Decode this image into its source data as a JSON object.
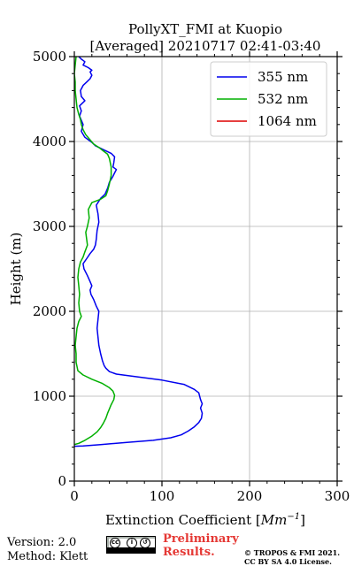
{
  "chart_data": {
    "type": "line",
    "title_line1": "PollyXT_FMI at Kuopio",
    "title_line2": "[Averaged] 20210717 02:41-03:40",
    "xlabel": "Extinction Coefficient [",
    "xlabel_unit": "Mm",
    "xlabel_exp": "−1",
    "xlabel_close": "]",
    "ylabel": "Height (m)",
    "xlim": [
      0,
      300
    ],
    "ylim": [
      0,
      5000
    ],
    "x_ticks": [
      0,
      100,
      200,
      300
    ],
    "x_tick_labels": [
      "0",
      "100",
      "200",
      "300"
    ],
    "y_ticks": [
      0,
      1000,
      2000,
      3000,
      4000,
      5000
    ],
    "y_tick_labels": [
      "0",
      "1000",
      "2000",
      "3000",
      "4000",
      "5000"
    ],
    "grid": true,
    "legend_position": "top-right",
    "series": [
      {
        "name": "355 nm",
        "color": "#0000ee",
        "points": [
          [
            0,
            410
          ],
          [
            10,
            415
          ],
          [
            30,
            430
          ],
          [
            60,
            455
          ],
          [
            90,
            480
          ],
          [
            110,
            510
          ],
          [
            122,
            545
          ],
          [
            130,
            590
          ],
          [
            137,
            640
          ],
          [
            142,
            690
          ],
          [
            145,
            740
          ],
          [
            146,
            800
          ],
          [
            144,
            860
          ],
          [
            146,
            910
          ],
          [
            144,
            960
          ],
          [
            142,
            1040
          ],
          [
            137,
            1080
          ],
          [
            125,
            1140
          ],
          [
            100,
            1190
          ],
          [
            70,
            1230
          ],
          [
            48,
            1260
          ],
          [
            40,
            1290
          ],
          [
            36,
            1330
          ],
          [
            34,
            1360
          ],
          [
            32,
            1420
          ],
          [
            30,
            1500
          ],
          [
            28,
            1600
          ],
          [
            27,
            1700
          ],
          [
            26,
            1800
          ],
          [
            27,
            1900
          ],
          [
            28,
            2000
          ],
          [
            25,
            2060
          ],
          [
            22,
            2140
          ],
          [
            19,
            2200
          ],
          [
            18,
            2250
          ],
          [
            20,
            2300
          ],
          [
            18,
            2350
          ],
          [
            15,
            2420
          ],
          [
            11,
            2500
          ],
          [
            10,
            2560
          ],
          [
            14,
            2620
          ],
          [
            18,
            2680
          ],
          [
            22,
            2730
          ],
          [
            24,
            2780
          ],
          [
            25,
            2850
          ],
          [
            26,
            2950
          ],
          [
            28,
            3050
          ],
          [
            27,
            3150
          ],
          [
            25,
            3250
          ],
          [
            30,
            3330
          ],
          [
            35,
            3380
          ],
          [
            38,
            3450
          ],
          [
            40,
            3520
          ],
          [
            44,
            3590
          ],
          [
            46,
            3630
          ],
          [
            48,
            3670
          ],
          [
            44,
            3700
          ],
          [
            45,
            3750
          ],
          [
            46,
            3820
          ],
          [
            42,
            3860
          ],
          [
            36,
            3890
          ],
          [
            30,
            3920
          ],
          [
            24,
            3950
          ],
          [
            20,
            3990
          ],
          [
            12,
            4050
          ],
          [
            8,
            4120
          ],
          [
            10,
            4200
          ],
          [
            6,
            4300
          ],
          [
            8,
            4360
          ],
          [
            6,
            4420
          ],
          [
            12,
            4480
          ],
          [
            8,
            4530
          ],
          [
            7,
            4600
          ],
          [
            10,
            4660
          ],
          [
            14,
            4700
          ],
          [
            18,
            4740
          ],
          [
            20,
            4780
          ],
          [
            18,
            4820
          ],
          [
            20,
            4840
          ],
          [
            16,
            4870
          ],
          [
            10,
            4900
          ],
          [
            12,
            4940
          ],
          [
            8,
            4970
          ],
          [
            5,
            5000
          ]
        ]
      },
      {
        "name": "532 nm",
        "color": "#00b000",
        "points": [
          [
            0,
            430
          ],
          [
            5,
            445
          ],
          [
            12,
            480
          ],
          [
            20,
            530
          ],
          [
            26,
            580
          ],
          [
            30,
            630
          ],
          [
            33,
            680
          ],
          [
            36,
            740
          ],
          [
            38,
            800
          ],
          [
            40,
            850
          ],
          [
            42,
            900
          ],
          [
            45,
            960
          ],
          [
            46,
            1010
          ],
          [
            44,
            1060
          ],
          [
            40,
            1100
          ],
          [
            32,
            1150
          ],
          [
            20,
            1200
          ],
          [
            10,
            1250
          ],
          [
            4,
            1300
          ],
          [
            2,
            1400
          ],
          [
            2,
            1500
          ],
          [
            1,
            1600
          ],
          [
            2,
            1700
          ],
          [
            3,
            1800
          ],
          [
            5,
            1880
          ],
          [
            8,
            1940
          ],
          [
            6,
            2000
          ],
          [
            5,
            2100
          ],
          [
            6,
            2200
          ],
          [
            5,
            2300
          ],
          [
            4,
            2400
          ],
          [
            5,
            2500
          ],
          [
            7,
            2580
          ],
          [
            10,
            2640
          ],
          [
            12,
            2700
          ],
          [
            15,
            2780
          ],
          [
            14,
            2850
          ],
          [
            13,
            2930
          ],
          [
            15,
            3000
          ],
          [
            17,
            3100
          ],
          [
            16,
            3200
          ],
          [
            20,
            3280
          ],
          [
            30,
            3320
          ],
          [
            36,
            3360
          ],
          [
            38,
            3420
          ],
          [
            40,
            3500
          ],
          [
            42,
            3600
          ],
          [
            42,
            3700
          ],
          [
            40,
            3800
          ],
          [
            38,
            3850
          ],
          [
            33,
            3890
          ],
          [
            28,
            3930
          ],
          [
            22,
            3970
          ],
          [
            18,
            4020
          ],
          [
            13,
            4080
          ],
          [
            10,
            4140
          ],
          [
            8,
            4200
          ],
          [
            7,
            4260
          ],
          [
            5,
            4320
          ],
          [
            3,
            4400
          ],
          [
            2,
            4500
          ],
          [
            1,
            4600
          ],
          [
            1,
            4700
          ],
          [
            0,
            4800
          ],
          [
            1,
            4900
          ],
          [
            2,
            5000
          ]
        ]
      },
      {
        "name": "1064 nm",
        "color": "#dd0000",
        "points": []
      }
    ]
  },
  "footer": {
    "version": "Version: 2.0",
    "method": "Method: Klett",
    "prelim_line1": "Preliminary",
    "prelim_line2": "Results.",
    "copyright_line1": "© TROPOS & FMI 2021.",
    "copyright_line2": "CC BY SA 4.0 License."
  }
}
